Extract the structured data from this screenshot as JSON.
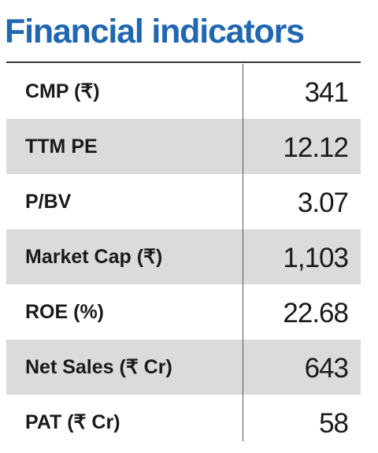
{
  "title": "Financial indicators",
  "rows": [
    {
      "label": "CMP (₹)",
      "value": "341"
    },
    {
      "label": "TTM PE",
      "value": "12.12"
    },
    {
      "label": "P/BV",
      "value": "3.07"
    },
    {
      "label": "Market Cap (₹)",
      "value": "1,103"
    },
    {
      "label": "ROE (%)",
      "value": "22.68"
    },
    {
      "label": "Net Sales (₹ Cr)",
      "value": "643"
    },
    {
      "label": "PAT (₹ Cr)",
      "value": "58"
    }
  ],
  "colors": {
    "title": "#1f66b3",
    "shaded_row": "#dadbdd",
    "text": "#1a1a1a"
  }
}
